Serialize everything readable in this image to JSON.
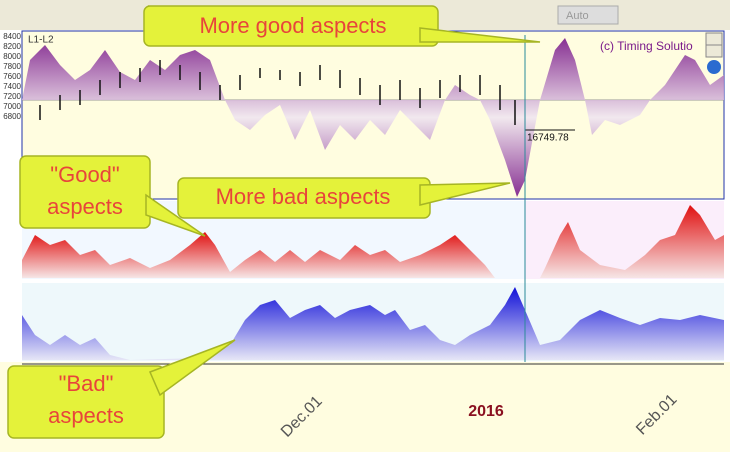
{
  "toolbar": {
    "field": "Auto"
  },
  "chart": {
    "panel_label": "L1-L2",
    "copyright": "(c) Timing Solutio",
    "price_label": "16749.78",
    "y_ticks": [
      "8400",
      "8200",
      "8000",
      "7800",
      "7600",
      "7400",
      "7200",
      "7000",
      "6800"
    ]
  },
  "x_axis": {
    "labels": [
      "Dec.01",
      "2016",
      "Feb.01"
    ]
  },
  "callouts": [
    {
      "lines": [
        "More good aspects"
      ]
    },
    {
      "lines": [
        "More bad aspects"
      ]
    },
    {
      "lines": [
        "\"Good\"",
        "aspects"
      ]
    },
    {
      "lines": [
        "\"Bad\"",
        "aspects"
      ]
    }
  ]
}
